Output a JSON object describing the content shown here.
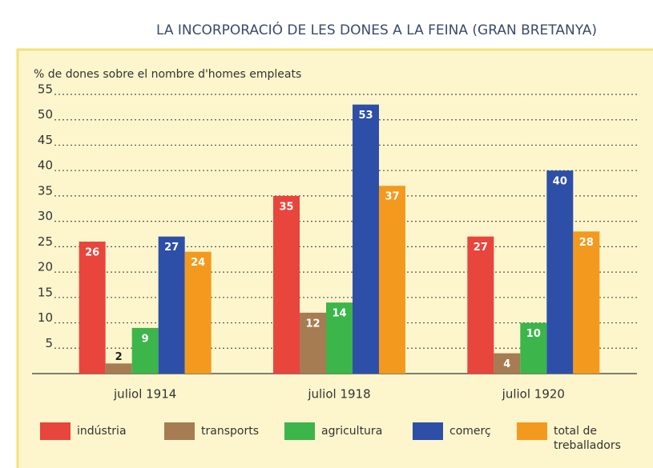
{
  "chart_data": {
    "type": "bar",
    "title": "LA INCORPORACIÓ DE LES DONES A LA FEINA (GRAN BRETANYA)",
    "y_label": "% de dones sobre el nombre d'homes empleats",
    "categories": [
      "juliol 1914",
      "juliol 1918",
      "juliol 1920"
    ],
    "series": [
      {
        "name": "indústria",
        "color": "#e8453c",
        "values": [
          26,
          35,
          27
        ]
      },
      {
        "name": "transports",
        "color": "#a67c52",
        "values": [
          2,
          12,
          4
        ]
      },
      {
        "name": "agricultura",
        "color": "#3cb54a",
        "values": [
          9,
          14,
          10
        ]
      },
      {
        "name": "comerç",
        "color": "#2e4fa8",
        "values": [
          27,
          53,
          40
        ]
      },
      {
        "name": "total de treballadors",
        "color": "#f39a1e",
        "values": [
          24,
          37,
          28
        ]
      }
    ],
    "ylim": [
      0,
      55
    ],
    "yticks": [
      5,
      10,
      15,
      20,
      25,
      30,
      35,
      40,
      45,
      50,
      55
    ],
    "grid": true
  }
}
